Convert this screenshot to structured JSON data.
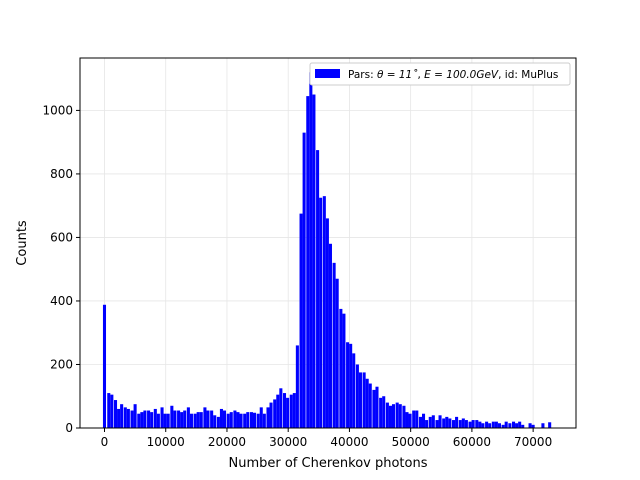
{
  "chart_data": {
    "type": "bar",
    "title": "",
    "xlabel": "Number of Cherenkov photons",
    "ylabel": "Counts",
    "xlim": [
      -4000,
      77000
    ],
    "ylim": [
      0,
      1165
    ],
    "xticks": [
      0,
      10000,
      20000,
      30000,
      40000,
      50000,
      60000,
      70000
    ],
    "xtick_labels": [
      "0",
      "10000",
      "20000",
      "30000",
      "40000",
      "50000",
      "60000",
      "70000"
    ],
    "yticks": [
      0,
      200,
      400,
      600,
      800,
      1000
    ],
    "ytick_labels": [
      "0",
      "200",
      "400",
      "600",
      "800",
      "1000"
    ],
    "grid": true,
    "legend_position": "top-right",
    "colors": {
      "bar": "#0000ff",
      "grid": "#e6e6e6"
    },
    "legend_label_prefix": "Pars: ",
    "legend_label_theta": "θ = 11˚",
    "legend_label_sep": ", ",
    "legend_label_energy": "E = 100.0GeV",
    "legend_label_suffix": ", id: MuPlus",
    "bin_width": 500,
    "x": [
      0,
      700,
      1200,
      1800,
      2300,
      2800,
      3400,
      3900,
      4500,
      5000,
      5600,
      6100,
      6600,
      7200,
      7700,
      8300,
      8800,
      9400,
      9900,
      10400,
      11000,
      11500,
      12100,
      12600,
      13100,
      13700,
      14200,
      14800,
      15300,
      15800,
      16400,
      16900,
      17500,
      18000,
      18600,
      19100,
      19600,
      20200,
      20700,
      21300,
      21800,
      22300,
      22900,
      23400,
      24000,
      24500,
      25100,
      25600,
      26100,
      26700,
      27200,
      27800,
      28300,
      28800,
      29400,
      29900,
      30500,
      31000,
      31500,
      32100,
      32600,
      33200,
      33700,
      34200,
      34800,
      35300,
      35900,
      36400,
      36900,
      37500,
      38000,
      38600,
      39100,
      39700,
      40200,
      40700,
      41300,
      41800,
      42400,
      42900,
      43400,
      44000,
      44500,
      45100,
      45600,
      46200,
      46700,
      47200,
      47800,
      48300,
      48900,
      49400,
      49900,
      50500,
      51000,
      51600,
      52100,
      52600,
      53200,
      53700,
      54300,
      54800,
      55400,
      55900,
      56400,
      57000,
      57500,
      58100,
      58600,
      59100,
      59700,
      60200,
      60800,
      61300,
      61800,
      62400,
      62900,
      63500,
      64000,
      64500,
      65100,
      65600,
      66200,
      66800,
      67300,
      67800,
      68300,
      69500,
      70000,
      71600,
      72700
    ],
    "values": [
      388,
      110,
      105,
      88,
      60,
      75,
      65,
      60,
      55,
      75,
      45,
      50,
      55,
      55,
      50,
      60,
      45,
      65,
      45,
      45,
      70,
      55,
      55,
      50,
      55,
      65,
      45,
      45,
      50,
      50,
      65,
      55,
      55,
      40,
      35,
      60,
      55,
      45,
      50,
      55,
      50,
      45,
      45,
      50,
      50,
      48,
      45,
      65,
      45,
      65,
      80,
      90,
      105,
      125,
      110,
      95,
      105,
      110,
      260,
      675,
      930,
      1045,
      1120,
      1050,
      875,
      725,
      730,
      660,
      580,
      520,
      470,
      375,
      360,
      270,
      265,
      235,
      200,
      175,
      175,
      155,
      140,
      120,
      130,
      95,
      100,
      80,
      70,
      75,
      80,
      75,
      70,
      50,
      45,
      55,
      55,
      35,
      45,
      25,
      35,
      40,
      25,
      40,
      30,
      35,
      30,
      25,
      35,
      25,
      30,
      25,
      20,
      25,
      25,
      20,
      15,
      20,
      15,
      20,
      20,
      15,
      10,
      20,
      15,
      20,
      15,
      20,
      10,
      15,
      10,
      15,
      18
    ]
  }
}
